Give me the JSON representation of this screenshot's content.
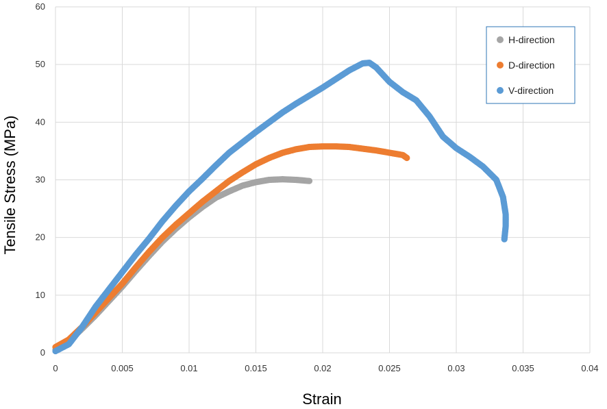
{
  "chart_data": {
    "type": "scatter",
    "title": "",
    "xlabel": "Strain",
    "ylabel": "Tensile Stress (MPa)",
    "xlim": [
      0,
      0.04
    ],
    "ylim": [
      0,
      60
    ],
    "x_ticks": [
      "0",
      "0.005",
      "0.01",
      "0.015",
      "0.02",
      "0.025",
      "0.03",
      "0.035",
      "0.04"
    ],
    "y_ticks": [
      "0",
      "10",
      "20",
      "30",
      "40",
      "50",
      "60"
    ],
    "grid": true,
    "legend_position": "top-right",
    "series": [
      {
        "name": "H-direction",
        "color": "#A5A5A5",
        "points": [
          [
            0,
            0.5
          ],
          [
            0.001,
            2
          ],
          [
            0.002,
            4.2
          ],
          [
            0.003,
            6.5
          ],
          [
            0.004,
            9
          ],
          [
            0.005,
            11.5
          ],
          [
            0.006,
            14.2
          ],
          [
            0.007,
            16.8
          ],
          [
            0.008,
            19.3
          ],
          [
            0.009,
            21.5
          ],
          [
            0.01,
            23.5
          ],
          [
            0.011,
            25.3
          ],
          [
            0.012,
            26.9
          ],
          [
            0.013,
            28
          ],
          [
            0.014,
            29
          ],
          [
            0.015,
            29.6
          ],
          [
            0.016,
            30
          ],
          [
            0.017,
            30.1
          ],
          [
            0.018,
            30
          ],
          [
            0.019,
            29.8
          ]
        ]
      },
      {
        "name": "D-direction",
        "color": "#ED7D31",
        "points": [
          [
            0,
            1
          ],
          [
            0.001,
            2.3
          ],
          [
            0.002,
            4.5
          ],
          [
            0.003,
            7
          ],
          [
            0.004,
            9.5
          ],
          [
            0.005,
            12
          ],
          [
            0.006,
            14.8
          ],
          [
            0.007,
            17.5
          ],
          [
            0.008,
            20
          ],
          [
            0.009,
            22.2
          ],
          [
            0.01,
            24.2
          ],
          [
            0.011,
            26.2
          ],
          [
            0.012,
            28
          ],
          [
            0.013,
            29.8
          ],
          [
            0.014,
            31.3
          ],
          [
            0.015,
            32.7
          ],
          [
            0.016,
            33.8
          ],
          [
            0.017,
            34.7
          ],
          [
            0.018,
            35.3
          ],
          [
            0.019,
            35.7
          ],
          [
            0.02,
            35.8
          ],
          [
            0.021,
            35.8
          ],
          [
            0.022,
            35.7
          ],
          [
            0.023,
            35.4
          ],
          [
            0.024,
            35.1
          ],
          [
            0.025,
            34.7
          ],
          [
            0.026,
            34.3
          ],
          [
            0.0263,
            33.8
          ]
        ]
      },
      {
        "name": "V-direction",
        "color": "#5B9BD5",
        "points": [
          [
            0,
            0.3
          ],
          [
            0.001,
            1.5
          ],
          [
            0.002,
            4.5
          ],
          [
            0.003,
            8
          ],
          [
            0.004,
            11
          ],
          [
            0.005,
            14
          ],
          [
            0.006,
            17
          ],
          [
            0.007,
            19.8
          ],
          [
            0.008,
            22.8
          ],
          [
            0.009,
            25.5
          ],
          [
            0.01,
            28
          ],
          [
            0.011,
            30.2
          ],
          [
            0.012,
            32.5
          ],
          [
            0.013,
            34.7
          ],
          [
            0.014,
            36.5
          ],
          [
            0.015,
            38.3
          ],
          [
            0.016,
            40
          ],
          [
            0.017,
            41.7
          ],
          [
            0.018,
            43.2
          ],
          [
            0.019,
            44.6
          ],
          [
            0.02,
            46
          ],
          [
            0.021,
            47.5
          ],
          [
            0.022,
            49
          ],
          [
            0.023,
            50.2
          ],
          [
            0.0235,
            50.3
          ],
          [
            0.024,
            49.5
          ],
          [
            0.025,
            47
          ],
          [
            0.026,
            45.2
          ],
          [
            0.027,
            43.8
          ],
          [
            0.028,
            41
          ],
          [
            0.029,
            37.5
          ],
          [
            0.03,
            35.5
          ],
          [
            0.031,
            34
          ],
          [
            0.032,
            32.3
          ],
          [
            0.033,
            30
          ],
          [
            0.0335,
            27
          ],
          [
            0.0337,
            24
          ],
          [
            0.0337,
            22
          ],
          [
            0.0336,
            19.7
          ]
        ]
      }
    ]
  }
}
